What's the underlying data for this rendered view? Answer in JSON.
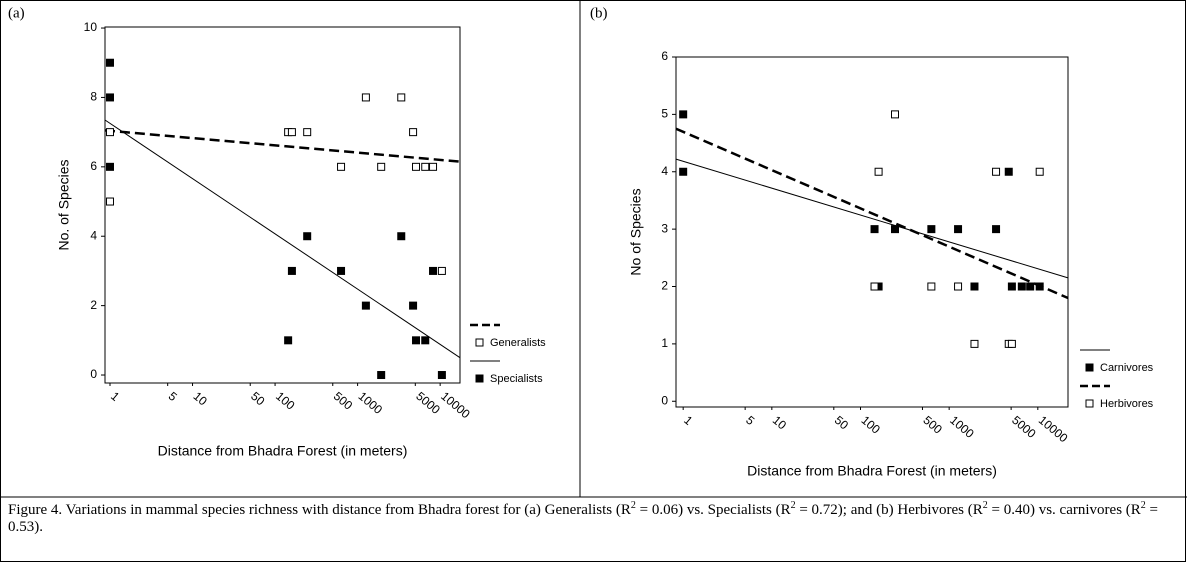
{
  "chart_data": [
    {
      "type": "scatter",
      "panel_label": "(a)",
      "ylabel": "No. of Species",
      "xlabel": "Distance from Bhadra Forest (in meters)",
      "xscale": "log",
      "xlim": [
        0.87,
        17400
      ],
      "ylim": [
        -0.23,
        10.03
      ],
      "xticks": [
        1,
        5,
        10,
        50,
        100,
        500,
        1000,
        5000,
        10000
      ],
      "yticks": [
        0,
        2,
        4,
        6,
        8,
        10
      ],
      "legend": "right",
      "series": [
        {
          "name": "Generalists",
          "marker": "open",
          "line": "dashed",
          "color": "#000000",
          "x": [
            1,
            1,
            144,
            160,
            245,
            630,
            1260,
            1930,
            3380,
            4700,
            5100,
            6600,
            8200,
            10500
          ],
          "values": [
            7,
            5,
            7,
            7,
            7,
            6,
            8,
            6,
            8,
            7,
            6,
            6,
            6,
            3
          ],
          "trend_x": [
            0.87,
            17400
          ],
          "trend_y": [
            7.05,
            6.15
          ]
        },
        {
          "name": "Specialists",
          "marker": "filled",
          "line": "solid",
          "color": "#000000",
          "x": [
            1,
            1,
            1,
            144,
            160,
            245,
            630,
            1260,
            1930,
            3380,
            4700,
            5100,
            6600,
            8200,
            10500
          ],
          "values": [
            9,
            8,
            6,
            1,
            3,
            4,
            3,
            2,
            0,
            4,
            2,
            1,
            1,
            3,
            0
          ],
          "trend_x": [
            0.87,
            17400
          ],
          "trend_y": [
            7.35,
            0.5
          ]
        }
      ]
    },
    {
      "type": "scatter",
      "panel_label": "(b)",
      "ylabel": "No of Species",
      "xlabel": "Distance from Bhadra Forest (in meters)",
      "xscale": "log",
      "xlim": [
        0.83,
        21900
      ],
      "ylim": [
        -0.1,
        6
      ],
      "xticks": [
        1,
        5,
        10,
        50,
        100,
        500,
        1000,
        5000,
        10000
      ],
      "yticks": [
        0,
        1,
        2,
        3,
        4,
        5,
        6
      ],
      "legend": "right",
      "series": [
        {
          "name": "Carnivores",
          "marker": "filled",
          "line": "solid",
          "color": "#000000",
          "x": [
            1,
            1,
            144,
            160,
            245,
            630,
            1260,
            1930,
            3380,
            4700,
            5100,
            6600,
            8200,
            10500
          ],
          "values": [
            5,
            4,
            3,
            2,
            3,
            3,
            3,
            2,
            3,
            4,
            2,
            2,
            2,
            2
          ],
          "trend_x": [
            0.83,
            21900
          ],
          "trend_y": [
            4.22,
            2.15
          ]
        },
        {
          "name": "Herbivores",
          "marker": "open",
          "line": "dashed",
          "color": "#000000",
          "x": [
            144,
            160,
            245,
            630,
            1260,
            1930,
            3380,
            4700,
            5100,
            10500
          ],
          "values": [
            2,
            4,
            5,
            2,
            2,
            1,
            4,
            1,
            1,
            4
          ],
          "trend_x": [
            0.83,
            21900
          ],
          "trend_y": [
            4.75,
            1.8
          ]
        }
      ]
    }
  ],
  "caption": [
    "Figure 4. Variations in mammal species richness with distance from Bhadra forest for (a) Generalists (R",
    "2",
    " = 0.06) vs. Specialists (R",
    "2",
    " = 0.72); and (b) Herbivores (R",
    "2",
    " = 0.40) vs. carnivores (R",
    "2",
    " = 0.53)."
  ]
}
